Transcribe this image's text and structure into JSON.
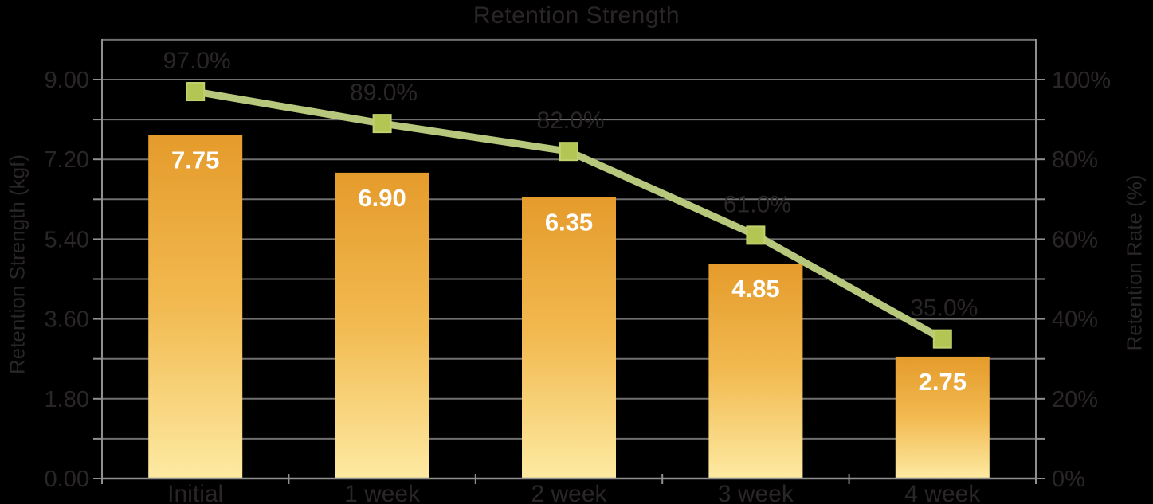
{
  "colors": {
    "background": "#000000",
    "text_dark": "#2a2627",
    "bar_label": "#ffffff",
    "grid": "#6f6f6f",
    "axis": "#8f8f8f",
    "bar_top": "#e59b2b",
    "bar_mid": "#f2ba51",
    "bar_bottom": "#fdeaa2",
    "line": "#b7c77c",
    "marker_fill": "#b3c654",
    "marker_edge": "#c3d06e"
  },
  "chart_data": {
    "type": "bar",
    "combo": "bar+line",
    "title": "Retention Strength",
    "categories": [
      "Initial",
      "1 week",
      "2 week",
      "3 week",
      "4 week"
    ],
    "series": [
      {
        "name": "Retention Strength",
        "type": "bar",
        "axis": "left",
        "values": [
          7.75,
          6.9,
          6.35,
          4.85,
          2.75
        ],
        "labels": [
          "7.75",
          "6.90",
          "6.35",
          "4.85",
          "2.75"
        ],
        "label_position": "inside-end"
      },
      {
        "name": "Retention Rate",
        "type": "line",
        "axis": "right",
        "marker": "square",
        "values": [
          97,
          89,
          82,
          61,
          35
        ],
        "labels": [
          "97.0%",
          "89.0%",
          "82.0%",
          "61.0%",
          "35.0%"
        ],
        "label_position": "above"
      }
    ],
    "left_axis": {
      "label": "Retention Strength (kgf)",
      "min": 0,
      "max": 9.0,
      "major_step": 1.8,
      "minor_step": 0.9,
      "tick_labels": [
        "0.00",
        "1.80",
        "3.60",
        "5.40",
        "7.20",
        "9.00"
      ]
    },
    "right_axis": {
      "label": "Retention Rate (%)",
      "min": 0,
      "max": 100,
      "major_step": 20,
      "minor_step": 10,
      "tick_labels": [
        "0%",
        "20%",
        "40%",
        "60%",
        "80%",
        "100%"
      ]
    },
    "grid": true,
    "legend": "none"
  }
}
